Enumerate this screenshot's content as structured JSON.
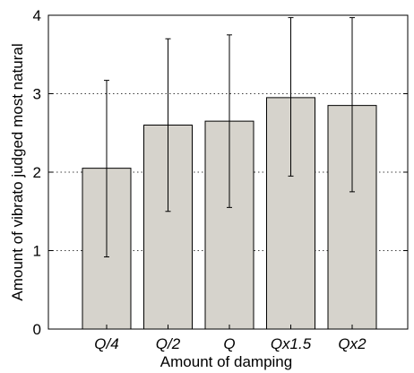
{
  "chart_data": {
    "type": "bar",
    "categories": [
      "Q/4",
      "Q/2",
      "Q",
      "Qx1.5",
      "Qx2"
    ],
    "values": [
      2.05,
      2.6,
      2.65,
      2.95,
      2.85
    ],
    "error_low": [
      0.92,
      1.5,
      1.55,
      1.95,
      1.75
    ],
    "error_high": [
      3.17,
      3.7,
      3.75,
      3.97,
      3.97
    ],
    "xlabel": "Amount of damping",
    "ylabel": "Amount of vibrato judged most natural",
    "ylim": [
      0,
      4
    ],
    "yticks": [
      "0",
      "1",
      "2",
      "3",
      "4"
    ],
    "grid": "dotted horizontal",
    "bar_color": "#d6d3cc"
  }
}
